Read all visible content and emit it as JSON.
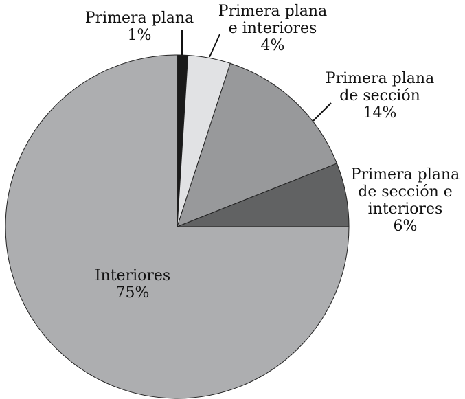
{
  "chart_data": {
    "type": "pie",
    "categories": [
      [
        "Primera plana"
      ],
      [
        "Primera plana",
        "e interiores"
      ],
      [
        "Primera plana",
        "de sección"
      ],
      [
        "Primera plana",
        "de sección e",
        "interiores"
      ],
      [
        "Interiores"
      ]
    ],
    "values": [
      1,
      4,
      14,
      6,
      75
    ],
    "value_labels": [
      "1%",
      "4%",
      "14%",
      "6%",
      "75%"
    ],
    "colors": [
      "#1a1a1a",
      "#e1e2e4",
      "#98999b",
      "#616263",
      "#adaeb0"
    ]
  }
}
